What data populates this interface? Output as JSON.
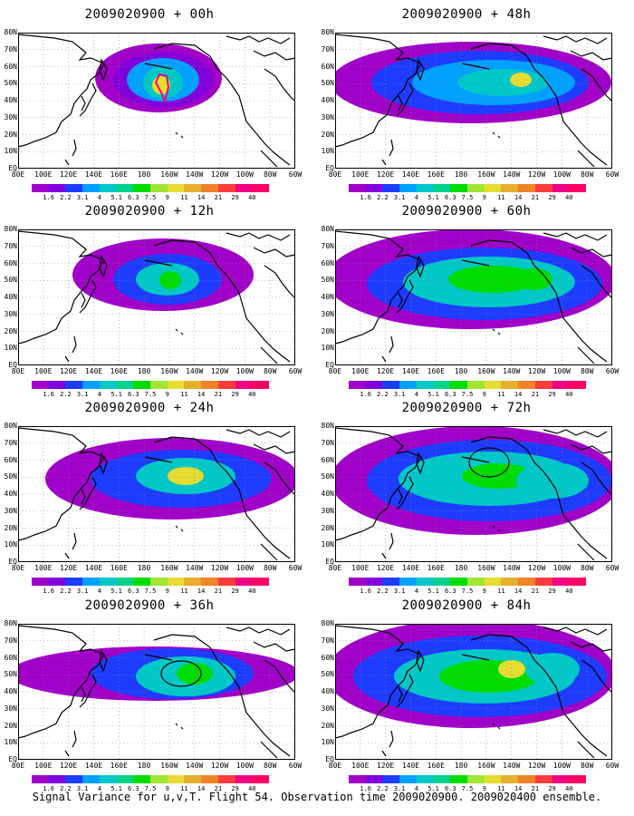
{
  "panels": [
    {
      "title": "2009020900 + 00h",
      "lead": 0
    },
    {
      "title": "2009020900 + 48h",
      "lead": 48
    },
    {
      "title": "2009020900 + 12h",
      "lead": 12
    },
    {
      "title": "2009020900 + 60h",
      "lead": 60
    },
    {
      "title": "2009020900 + 24h",
      "lead": 24
    },
    {
      "title": "2009020900 + 72h",
      "lead": 72
    },
    {
      "title": "2009020900 + 36h",
      "lead": 36
    },
    {
      "title": "2009020900 + 84h",
      "lead": 84
    }
  ],
  "lat_labels": [
    "80N",
    "70N",
    "60N",
    "50N",
    "40N",
    "30N",
    "20N",
    "10N",
    "EQ"
  ],
  "lon_labels": [
    "80E",
    "100E",
    "120E",
    "140E",
    "160E",
    "180",
    "160W",
    "140W",
    "120W",
    "100W",
    "80W",
    "60W"
  ],
  "colorbar": {
    "levels": [
      "1.6",
      "2.2",
      "3.1",
      "4",
      "5.1",
      "6.3",
      "7.5",
      "9",
      "11",
      "14",
      "21",
      "29",
      "40"
    ],
    "colors": [
      "#a000c8",
      "#8200dc",
      "#1e3cff",
      "#00a0ff",
      "#00c8c8",
      "#00d28c",
      "#00dc00",
      "#a0e632",
      "#e6dc32",
      "#e6af2d",
      "#f08228",
      "#fa3c3c",
      "#f00082"
    ]
  },
  "caption": "Signal Variance for u,v,T. Flight 54. Observation time 2009020900. 2009020400 ensemble."
}
